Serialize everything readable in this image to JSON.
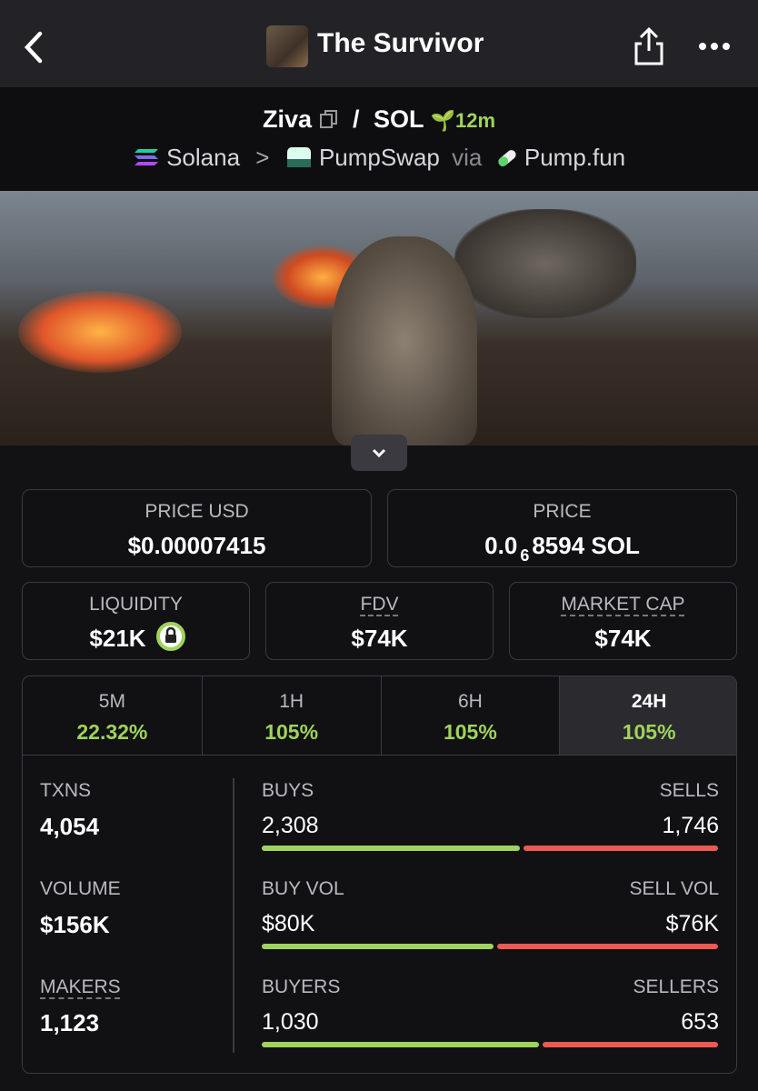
{
  "nav": {
    "title": "The Survivor"
  },
  "pair": {
    "base": "Ziva",
    "separator": "/",
    "quote": "SOL",
    "age": "12m",
    "chain": "Solana",
    "dex": "PumpSwap",
    "via": "via",
    "launchpad": "Pump.fun"
  },
  "price_cards": [
    {
      "label": "PRICE USD",
      "value": "$0.00007415"
    },
    {
      "label": "PRICE",
      "value_parts": [
        "0.0",
        "6",
        "8594 SOL"
      ]
    }
  ],
  "stats": [
    {
      "label": "LIQUIDITY",
      "value": "$21K"
    },
    {
      "label": "FDV",
      "value": "$74K"
    },
    {
      "label": "MARKET CAP",
      "value": "$74K"
    }
  ],
  "tabs": [
    {
      "label": "5M",
      "change": "22.32%"
    },
    {
      "label": "1H",
      "change": "105%"
    },
    {
      "label": "6H",
      "change": "105%"
    },
    {
      "label": "24H",
      "change": "105%"
    }
  ],
  "active_tab": 3,
  "metrics": [
    {
      "label": "TXNS",
      "value": "4,054",
      "left_label": "BUYS",
      "right_label": "SELLS",
      "left": {
        "value": 2308,
        "label": "2,308"
      },
      "right": {
        "value": 1746,
        "label": "1,746"
      }
    },
    {
      "label": "VOLUME",
      "value": "$156K",
      "left_label": "BUY VOL",
      "right_label": "SELL VOL",
      "left": {
        "value": 80000,
        "label": "$80K"
      },
      "right": {
        "value": 76000,
        "label": "$76K"
      }
    },
    {
      "label": "MAKERS",
      "value": "1,123",
      "left_label": "BUYERS",
      "right_label": "SELLERS",
      "left": {
        "value": 1030,
        "label": "1,030"
      },
      "right": {
        "value": 653,
        "label": "653"
      }
    }
  ]
}
